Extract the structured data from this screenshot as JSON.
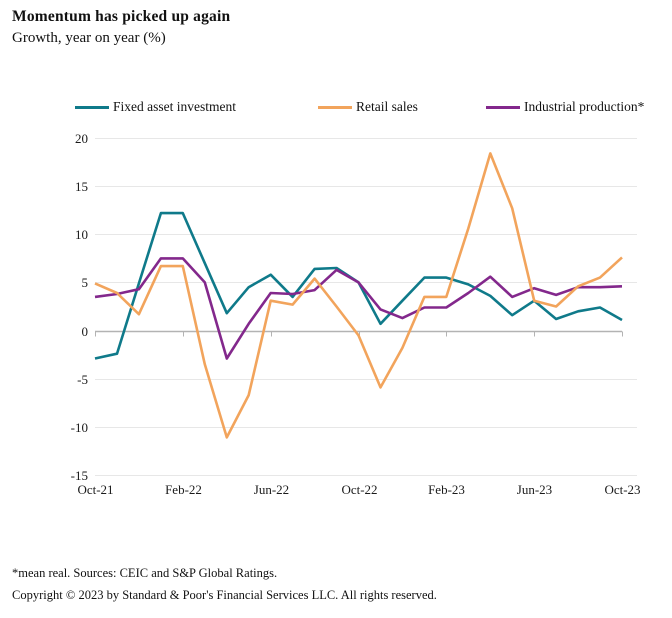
{
  "title": "Momentum has picked up again",
  "subtitle": "Growth, year on year (%)",
  "footnote": "*mean real. Sources: CEIC and S&P Global Ratings.",
  "copyright": "Copyright © 2023 by Standard & Poor's Financial Services LLC. All rights reserved.",
  "colors": {
    "grid": "#e7e7e7",
    "axis": "#b3b3b3",
    "text": "#1a1a1a"
  },
  "chart_data": {
    "type": "line",
    "title": "Momentum has picked up again",
    "subtitle": "Growth, year on year (%)",
    "x": [
      "Oct-21",
      "Nov-21",
      "Dec-21",
      "Jan-22",
      "Feb-22",
      "Mar-22",
      "Apr-22",
      "May-22",
      "Jun-22",
      "Jul-22",
      "Aug-22",
      "Sep-22",
      "Oct-22",
      "Nov-22",
      "Dec-22",
      "Jan-23",
      "Feb-23",
      "Mar-23",
      "Apr-23",
      "May-23",
      "Jun-23",
      "Jul-23",
      "Aug-23",
      "Sep-23",
      "Oct-23"
    ],
    "x_tick_labels": [
      "Oct-21",
      "Feb-22",
      "Jun-22",
      "Oct-22",
      "Feb-23",
      "Jun-23",
      "Oct-23"
    ],
    "y_ticks": [
      20,
      15,
      10,
      5,
      0,
      -5,
      -10,
      -15
    ],
    "ylim": [
      -15,
      20
    ],
    "grid": "horizontal",
    "legend_position": "top",
    "series": [
      {
        "name": "Fixed asset investment",
        "color": "#0f7a8a",
        "values": [
          -2.9,
          -2.4,
          4.9,
          12.2,
          12.2,
          7.0,
          1.8,
          4.5,
          5.8,
          3.5,
          6.4,
          6.5,
          5.0,
          0.7,
          3.1,
          5.5,
          5.5,
          4.8,
          3.6,
          1.6,
          3.1,
          1.2,
          2.0,
          2.4,
          1.1
        ]
      },
      {
        "name": "Retail sales",
        "color": "#f2a45c",
        "values": [
          4.9,
          3.9,
          1.7,
          6.7,
          6.7,
          -3.5,
          -11.1,
          -6.7,
          3.1,
          2.7,
          5.4,
          2.5,
          -0.5,
          -5.9,
          -1.8,
          3.5,
          3.5,
          10.6,
          18.4,
          12.7,
          3.1,
          2.5,
          4.6,
          5.5,
          7.6
        ]
      },
      {
        "name": "Industrial production*",
        "color": "#83288c",
        "values": [
          3.5,
          3.8,
          4.3,
          7.5,
          7.5,
          5.0,
          -2.9,
          0.7,
          3.9,
          3.8,
          4.2,
          6.3,
          5.0,
          2.2,
          1.3,
          2.4,
          2.4,
          3.9,
          5.6,
          3.5,
          4.4,
          3.7,
          4.5,
          4.5,
          4.6
        ]
      }
    ]
  }
}
